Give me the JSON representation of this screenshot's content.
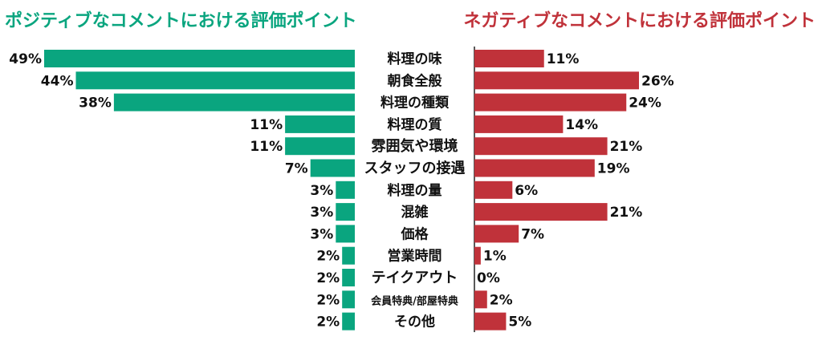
{
  "chart_data": {
    "type": "bar",
    "layout": "butterfly",
    "categories": [
      "料理の味",
      "朝食全般",
      "料理の種類",
      "料理の質",
      "雰囲気や環境",
      "スタッフの接遇",
      "料理の量",
      "混雑",
      "価格",
      "営業時間",
      "テイクアウト",
      "会員特典/部屋特典",
      "その他"
    ],
    "series": [
      {
        "name": "ポジティブなコメントにおける評価ポイント",
        "values": [
          49,
          44,
          38,
          11,
          11,
          7,
          3,
          3,
          3,
          2,
          2,
          2,
          2
        ],
        "labels": [
          "49%",
          "44%",
          "38%",
          "11%",
          "11%",
          "7%",
          "3%",
          "3%",
          "3%",
          "2%",
          "2%",
          "2%",
          "2%"
        ],
        "color": "#0aa57f"
      },
      {
        "name": "ネガティブなコメントにおける評価ポイント",
        "values": [
          11,
          26,
          24,
          14,
          21,
          19,
          6,
          21,
          7,
          1,
          0,
          2,
          5
        ],
        "labels": [
          "11%",
          "26%",
          "24%",
          "14%",
          "21%",
          "19%",
          "6%",
          "21%",
          "7%",
          "1%",
          "0%",
          "2%",
          "5%"
        ],
        "color": "#c0323a"
      }
    ],
    "unit": "%",
    "xlim": [
      0,
      49
    ],
    "grid": false
  }
}
